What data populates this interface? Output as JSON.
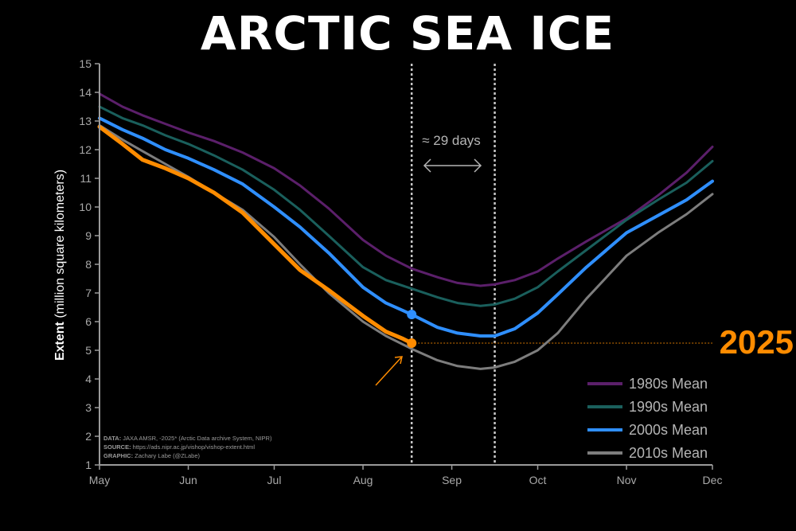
{
  "title": "ARCTIC SEA ICE",
  "year_label": "2025",
  "annotation_days": "≈ 29 days",
  "source": {
    "data_label": "DATA:",
    "data_text": " JAXA AMSR, -2025* (Arctic Data archive System, NIPR)",
    "source_label": "SOURCE:",
    "source_text": " https://ads.nipr.ac.jp/vishop/vishop-extent.html",
    "graphic_label": "GRAPHIC:",
    "graphic_text": " Zachary Labe (@ZLabe)"
  },
  "colors": {
    "1980s": "#5b1f6a",
    "1990s": "#1a5f5c",
    "2000s": "#2f8fff",
    "2010s": "#7d7d7d",
    "2025": "#ff8c00",
    "axis": "#9a9a9a"
  },
  "chart_data": {
    "type": "line",
    "title": "ARCTIC SEA ICE",
    "ylabel_bold": "Extent",
    "ylabel_rest": " (million square kilometers)",
    "xlabel": "",
    "ylim": [
      1,
      15
    ],
    "yticks": [
      1,
      2,
      3,
      4,
      5,
      6,
      7,
      8,
      9,
      10,
      11,
      12,
      13,
      14,
      15
    ],
    "xlim": [
      0,
      214
    ],
    "month_ticks": [
      {
        "label": "May",
        "day": 0
      },
      {
        "label": "Jun",
        "day": 31
      },
      {
        "label": "Jul",
        "day": 61
      },
      {
        "label": "Aug",
        "day": 92
      },
      {
        "label": "Sep",
        "day": 123
      },
      {
        "label": "Oct",
        "day": 153
      },
      {
        "label": "Nov",
        "day": 184
      },
      {
        "label": "Dec",
        "day": 214
      }
    ],
    "vlines": [
      109,
      138
    ],
    "reference_line_value": 5.25,
    "legend": [
      "1980s Mean",
      "1990s Mean",
      "2000s Mean",
      "2010s Mean"
    ],
    "legend_position": "bottom-right",
    "series": [
      {
        "name": "1980s Mean",
        "key": "1980s",
        "x": [
          0,
          8,
          15,
          23,
          31,
          40,
          50,
          61,
          70,
          80,
          92,
          100,
          109,
          118,
          125,
          133,
          138,
          145,
          153,
          160,
          170,
          184,
          195,
          205,
          214
        ],
        "y": [
          13.95,
          13.5,
          13.2,
          12.9,
          12.6,
          12.3,
          11.9,
          11.35,
          10.75,
          9.95,
          8.85,
          8.3,
          7.85,
          7.55,
          7.35,
          7.25,
          7.3,
          7.45,
          7.75,
          8.2,
          8.8,
          9.6,
          10.4,
          11.2,
          12.1
        ]
      },
      {
        "name": "1990s Mean",
        "key": "1990s",
        "x": [
          0,
          8,
          15,
          23,
          31,
          40,
          50,
          61,
          70,
          80,
          92,
          100,
          109,
          118,
          125,
          133,
          138,
          145,
          153,
          160,
          170,
          184,
          195,
          205,
          214
        ],
        "y": [
          13.5,
          13.1,
          12.85,
          12.5,
          12.2,
          11.8,
          11.3,
          10.6,
          9.9,
          9.0,
          7.9,
          7.45,
          7.15,
          6.85,
          6.65,
          6.55,
          6.6,
          6.8,
          7.2,
          7.75,
          8.5,
          9.55,
          10.25,
          10.85,
          11.6
        ]
      },
      {
        "name": "2000s Mean",
        "key": "2000s",
        "x": [
          0,
          8,
          15,
          23,
          31,
          40,
          50,
          61,
          70,
          80,
          92,
          100,
          109,
          118,
          125,
          133,
          138,
          145,
          153,
          160,
          170,
          184,
          195,
          205,
          214
        ],
        "y": [
          13.1,
          12.7,
          12.4,
          12.0,
          11.7,
          11.3,
          10.8,
          10.0,
          9.3,
          8.4,
          7.2,
          6.65,
          6.25,
          5.8,
          5.6,
          5.5,
          5.5,
          5.75,
          6.3,
          6.95,
          7.9,
          9.1,
          9.7,
          10.25,
          10.9
        ]
      },
      {
        "name": "2010s Mean",
        "key": "2010s",
        "x": [
          0,
          8,
          15,
          23,
          31,
          40,
          50,
          61,
          70,
          80,
          92,
          100,
          109,
          118,
          125,
          133,
          138,
          145,
          153,
          160,
          170,
          184,
          195,
          205,
          214
        ],
        "y": [
          12.85,
          12.35,
          11.95,
          11.5,
          11.05,
          10.5,
          9.9,
          8.95,
          8.0,
          7.0,
          6.0,
          5.5,
          5.05,
          4.65,
          4.45,
          4.35,
          4.4,
          4.6,
          5.0,
          5.6,
          6.8,
          8.3,
          9.1,
          9.75,
          10.45
        ]
      },
      {
        "name": "2025",
        "key": "2025",
        "x": [
          0,
          8,
          15,
          23,
          31,
          40,
          50,
          61,
          70,
          80,
          92,
          100,
          106,
          109
        ],
        "y": [
          12.8,
          12.2,
          11.65,
          11.35,
          11.0,
          10.5,
          9.8,
          8.7,
          7.8,
          7.1,
          6.2,
          5.65,
          5.4,
          5.25
        ]
      }
    ],
    "markers": [
      {
        "series": "2000s Mean",
        "x": 109,
        "y": 6.25
      },
      {
        "series": "2025",
        "x": 109,
        "y": 5.25
      }
    ]
  }
}
